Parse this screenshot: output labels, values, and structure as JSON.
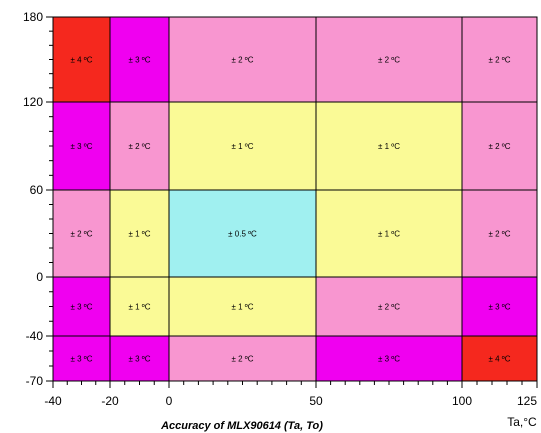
{
  "chart_data": {
    "type": "heatmap",
    "title": "Accuracy of MLX90614 (Ta, To)",
    "xlabel": "Ta,°C",
    "ylabel": "",
    "x_edges": [
      -40,
      -20,
      0,
      50,
      100,
      125
    ],
    "y_edges": [
      -70,
      -40,
      0,
      60,
      120,
      180
    ],
    "x_ticks": [
      "-40",
      "-20",
      "0",
      "50",
      "100",
      "125"
    ],
    "y_ticks": [
      "-70",
      "-40",
      "0",
      "60",
      "120",
      "180"
    ],
    "xlim": [
      -40,
      125
    ],
    "ylim": [
      -70,
      180
    ],
    "colors": {
      "4": "#f5281e",
      "3": "#f000f0",
      "2": "#f896d0",
      "1": "#fafa96",
      "0.5": "#a0f0f0"
    },
    "cells": [
      {
        "x0": -40,
        "x1": -20,
        "y0": 120,
        "y1": 180,
        "value": 4,
        "label": "± 4 ºC"
      },
      {
        "x0": -20,
        "x1": 0,
        "y0": 120,
        "y1": 180,
        "value": 3,
        "label": "± 3 ºC"
      },
      {
        "x0": 0,
        "x1": 50,
        "y0": 120,
        "y1": 180,
        "value": 2,
        "label": "± 2 ºC"
      },
      {
        "x0": 50,
        "x1": 100,
        "y0": 120,
        "y1": 180,
        "value": 2,
        "label": "± 2 ºC"
      },
      {
        "x0": 100,
        "x1": 125,
        "y0": 120,
        "y1": 180,
        "value": 2,
        "label": "± 2 ºC"
      },
      {
        "x0": -40,
        "x1": -20,
        "y0": 60,
        "y1": 120,
        "value": 3,
        "label": "± 3 ºC"
      },
      {
        "x0": -20,
        "x1": 0,
        "y0": 60,
        "y1": 120,
        "value": 2,
        "label": "± 2 ºC"
      },
      {
        "x0": 0,
        "x1": 50,
        "y0": 60,
        "y1": 120,
        "value": 1,
        "label": "± 1 ºC"
      },
      {
        "x0": 50,
        "x1": 100,
        "y0": 60,
        "y1": 120,
        "value": 1,
        "label": "± 1 ºC"
      },
      {
        "x0": 100,
        "x1": 125,
        "y0": 60,
        "y1": 120,
        "value": 2,
        "label": "± 2 ºC"
      },
      {
        "x0": -40,
        "x1": -20,
        "y0": 0,
        "y1": 60,
        "value": 2,
        "label": "± 2 ºC"
      },
      {
        "x0": -20,
        "x1": 0,
        "y0": 0,
        "y1": 60,
        "value": 1,
        "label": "± 1 ºC"
      },
      {
        "x0": 0,
        "x1": 50,
        "y0": 0,
        "y1": 60,
        "value": 0.5,
        "label": "± 0.5 ºC"
      },
      {
        "x0": 50,
        "x1": 100,
        "y0": 0,
        "y1": 60,
        "value": 1,
        "label": "± 1 ºC"
      },
      {
        "x0": 100,
        "x1": 125,
        "y0": 0,
        "y1": 60,
        "value": 2,
        "label": "± 2 ºC"
      },
      {
        "x0": -40,
        "x1": -20,
        "y0": -40,
        "y1": 0,
        "value": 3,
        "label": "± 3 ºC"
      },
      {
        "x0": -20,
        "x1": 0,
        "y0": -40,
        "y1": 0,
        "value": 1,
        "label": "± 1 ºC"
      },
      {
        "x0": 0,
        "x1": 50,
        "y0": -40,
        "y1": 0,
        "value": 1,
        "label": "± 1 ºC"
      },
      {
        "x0": 50,
        "x1": 100,
        "y0": -40,
        "y1": 0,
        "value": 2,
        "label": "± 2 ºC"
      },
      {
        "x0": 100,
        "x1": 125,
        "y0": -40,
        "y1": 0,
        "value": 3,
        "label": "± 3 ºC"
      },
      {
        "x0": -40,
        "x1": -20,
        "y0": -70,
        "y1": -40,
        "value": 3,
        "label": "± 3 ºC"
      },
      {
        "x0": -20,
        "x1": 0,
        "y0": -70,
        "y1": -40,
        "value": 3,
        "label": "± 3 ºC"
      },
      {
        "x0": 0,
        "x1": 50,
        "y0": -70,
        "y1": -40,
        "value": 2,
        "label": "± 2 ºC"
      },
      {
        "x0": 50,
        "x1": 100,
        "y0": -70,
        "y1": -40,
        "value": 3,
        "label": "± 3 ºC"
      },
      {
        "x0": 100,
        "x1": 125,
        "y0": -70,
        "y1": -40,
        "value": 4,
        "label": "± 4 ºC"
      }
    ]
  }
}
